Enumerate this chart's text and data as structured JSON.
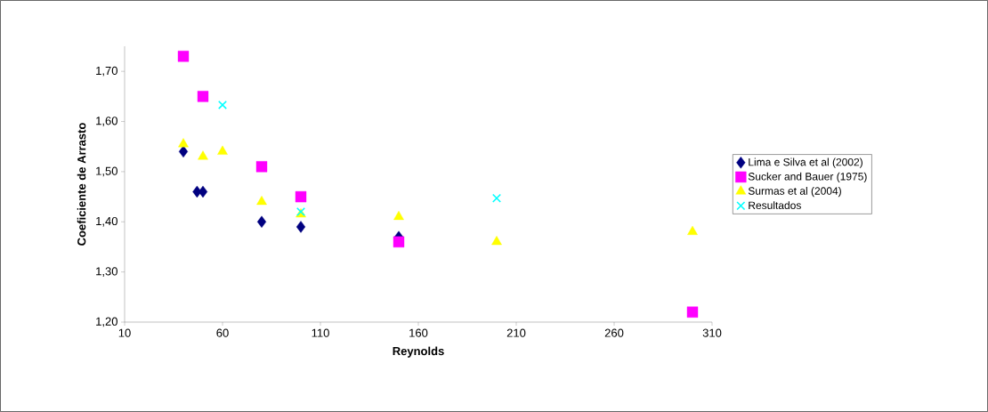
{
  "chart_data": {
    "type": "scatter",
    "xlabel": "Reynolds",
    "ylabel": "Coeficiente de Arrasto",
    "xlim": [
      10,
      310
    ],
    "xticks": [
      10,
      60,
      110,
      160,
      210,
      260,
      310
    ],
    "ylim": [
      1.2,
      1.75
    ],
    "yticks": [
      {
        "value": 1.2,
        "label": "1,20"
      },
      {
        "value": 1.3,
        "label": "1,30"
      },
      {
        "value": 1.4,
        "label": "1,40"
      },
      {
        "value": 1.5,
        "label": "1,50"
      },
      {
        "value": 1.6,
        "label": "1,60"
      },
      {
        "value": 1.7,
        "label": "1,70"
      }
    ],
    "legend": "right",
    "series": [
      {
        "name": "Lima e Silva et al (2002)",
        "color": "#000080",
        "marker": "diamond",
        "x": [
          40,
          47,
          50,
          80,
          100,
          150
        ],
        "values": [
          1.54,
          1.46,
          1.46,
          1.4,
          1.39,
          1.37
        ]
      },
      {
        "name": "Sucker and Bauer (1975)",
        "color": "#ff00ff",
        "marker": "square",
        "x": [
          40,
          50,
          80,
          100,
          150,
          300
        ],
        "values": [
          1.73,
          1.65,
          1.51,
          1.45,
          1.36,
          1.22
        ]
      },
      {
        "name": "Surmas et al (2004)",
        "color": "#ffff00",
        "marker": "triangle",
        "x": [
          40,
          50,
          60,
          80,
          100,
          150,
          200,
          300
        ],
        "values": [
          1.555,
          1.53,
          1.54,
          1.44,
          1.415,
          1.41,
          1.36,
          1.38
        ]
      },
      {
        "name": "Resultados",
        "color": "#00ffff",
        "marker": "cross",
        "x": [
          60,
          100,
          200
        ],
        "values": [
          1.633,
          1.42,
          1.447
        ]
      }
    ]
  }
}
